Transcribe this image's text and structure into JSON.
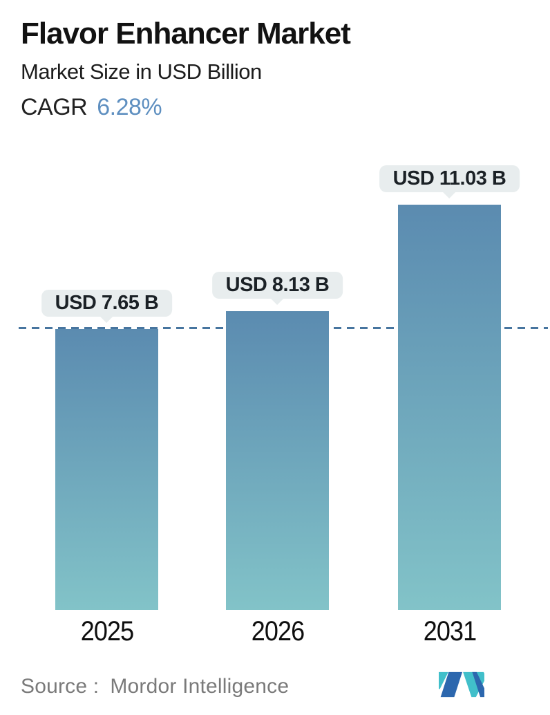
{
  "header": {
    "title": "Flavor Enhancer Market",
    "subtitle": "Market Size in USD Billion",
    "cagr_label": "CAGR",
    "cagr_value": "6.28%"
  },
  "chart_data": {
    "type": "bar",
    "title": "Flavor Enhancer Market",
    "subtitle": "Market Size in USD Billion",
    "unit": "USD Billion",
    "categories": [
      "2025",
      "2026",
      "2031"
    ],
    "values": [
      7.65,
      8.13,
      11.03
    ],
    "bars": [
      {
        "category": "2025",
        "value": 7.65,
        "label": "USD 7.65 B"
      },
      {
        "category": "2026",
        "value": 8.13,
        "label": "USD 8.13 B"
      },
      {
        "category": "2031",
        "value": 11.03,
        "label": "USD 11.03 B"
      }
    ],
    "ylim": [
      0,
      11.03
    ],
    "reference_line": {
      "value": 7.65,
      "style": "dashed"
    },
    "grid": "off",
    "legend": "none",
    "colors": {
      "bar_gradient_top": "#5b8bb0",
      "bar_gradient_bottom": "#82c3c8",
      "dashed_line": "#47759f",
      "badge_bg": "#e8edee",
      "cagr_accent": "#5e8fc0",
      "logo_blue": "#2c67ae",
      "logo_teal": "#41bfca"
    }
  },
  "footer": {
    "source_label": "Source :",
    "source_value": "Mordor Intelligence",
    "logo_name": "mordor-intelligence-logo"
  }
}
